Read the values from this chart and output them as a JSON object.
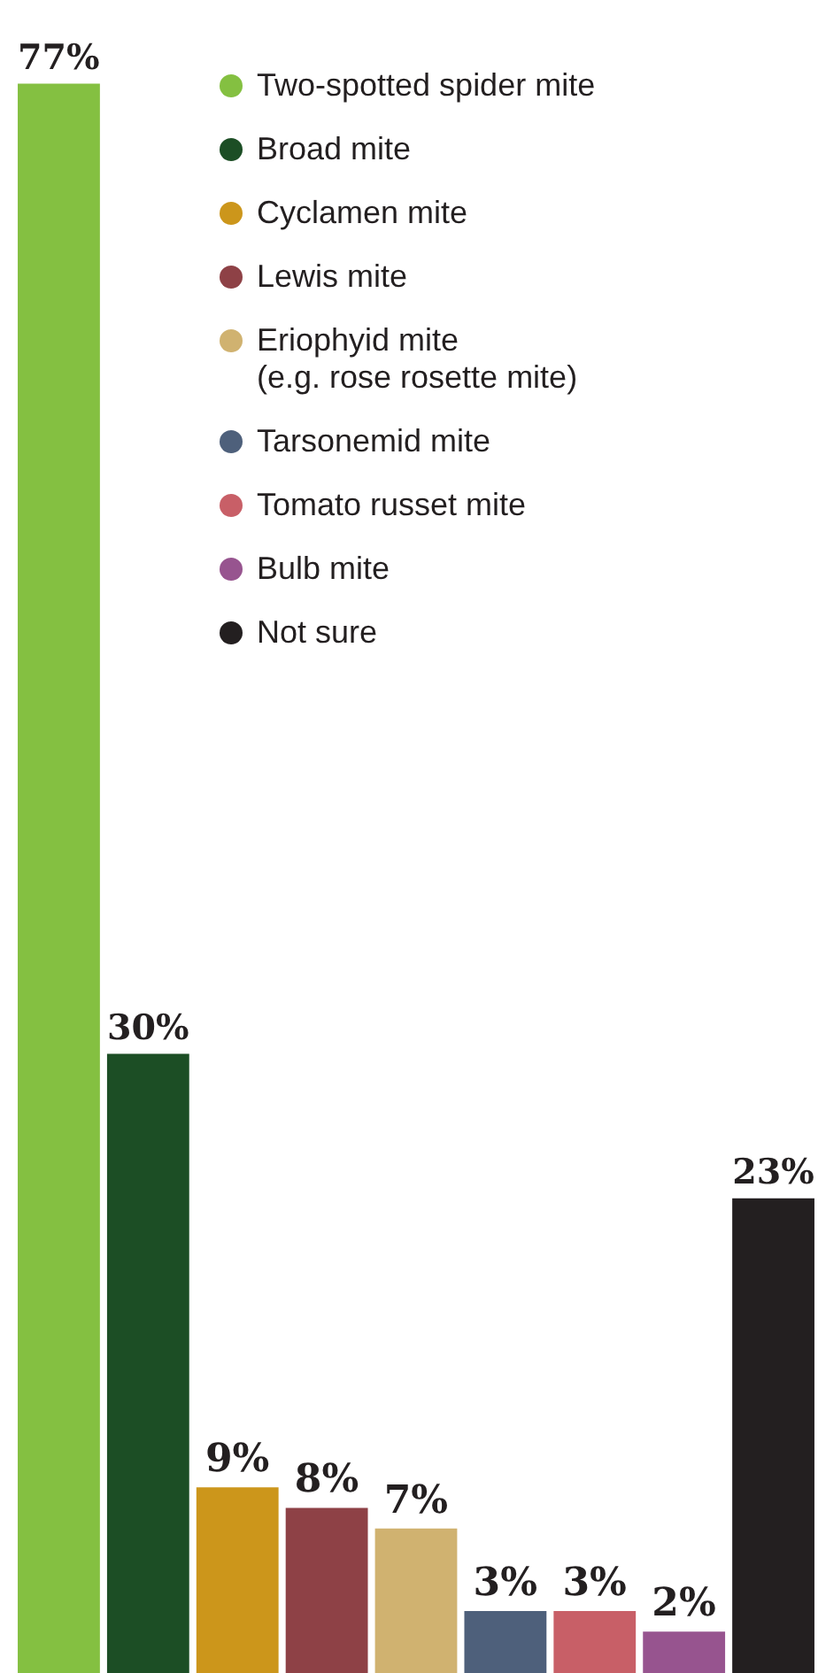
{
  "chart_data": {
    "type": "bar",
    "categories": [
      null,
      null,
      null,
      null,
      null,
      null,
      null,
      null,
      null
    ],
    "values": [
      77,
      30,
      9,
      8,
      7,
      3,
      3,
      2,
      23
    ],
    "colors": [
      "#84c041",
      "#1c4e25",
      "#cc961b",
      "#8e4146",
      "#d0b270",
      "#4e607b",
      "#c85f67",
      "#97548f",
      "#231f20"
    ],
    "value_labels": [
      "77%",
      "30%",
      "9%",
      "8%",
      "7%",
      "3%",
      "3%",
      "2%",
      "23%"
    ],
    "annotations": [
      "Two-spotted spider mite",
      "Broad mite",
      "Cyclamen mite",
      "Lewis mite",
      "Eriophyid mite\n(e.g. rose rosette mite)",
      "Tarsonemid mite",
      "Tomato russet mite",
      "Bulb mite",
      "Not sure"
    ]
  }
}
